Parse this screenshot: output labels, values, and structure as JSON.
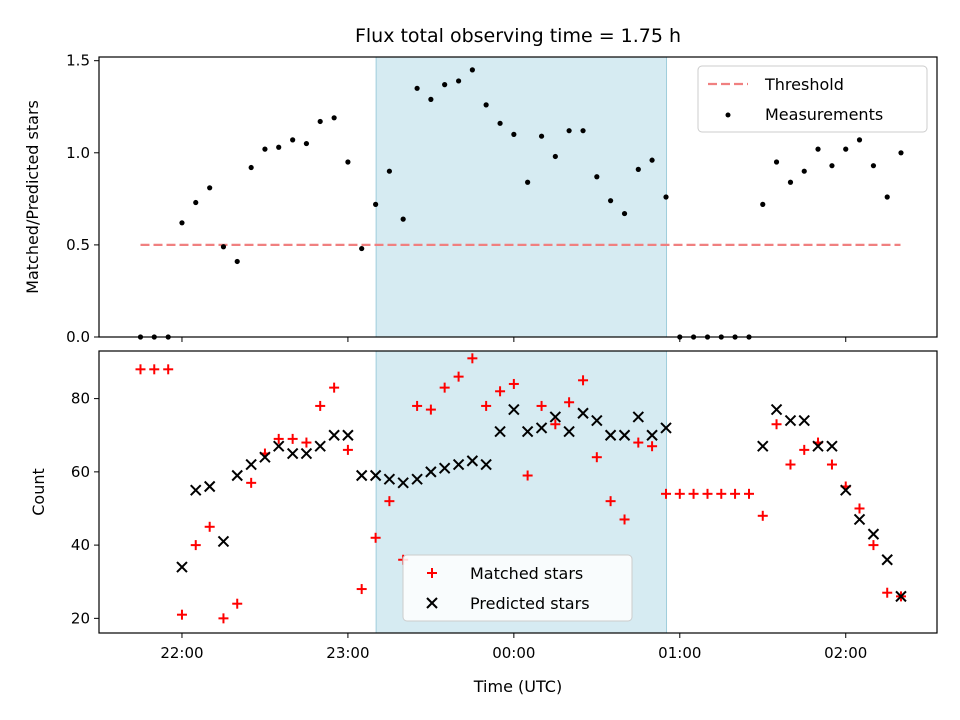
{
  "colors": {
    "highlight": "#add8e6",
    "threshold": "#f08080",
    "measurement": "#000000",
    "matched": "#ff0000",
    "predicted": "#000000"
  },
  "chart_data": [
    {
      "type": "scatter",
      "title": "Flux total observing time = 1.75 h",
      "xlabel": "",
      "ylabel": "Matched/Predicted stars",
      "ylim": [
        0,
        1.52
      ],
      "yticks": [
        "0.0",
        "0.5",
        "1.0",
        "1.5"
      ],
      "ytick_values": [
        0,
        0.5,
        1.0,
        1.5
      ],
      "shaded_region_hours": [
        23.17,
        24.92
      ],
      "legend_position": "upper right",
      "series": [
        {
          "name": "Threshold",
          "style": "dashed-line",
          "x": [
            21.75,
            26.33
          ],
          "y": [
            0.5,
            0.5
          ]
        },
        {
          "name": "Measurements",
          "style": "dot",
          "x": [
            21.75,
            21.833,
            21.917,
            22.0,
            22.083,
            22.167,
            22.25,
            22.333,
            22.417,
            22.5,
            22.583,
            22.667,
            22.75,
            22.833,
            22.917,
            23.0,
            23.083,
            23.167,
            23.25,
            23.333,
            23.417,
            23.5,
            23.583,
            23.667,
            23.75,
            23.833,
            23.917,
            24.0,
            24.083,
            24.167,
            24.25,
            24.333,
            24.417,
            24.5,
            24.583,
            24.667,
            24.75,
            24.833,
            24.917,
            25.0,
            25.083,
            25.167,
            25.25,
            25.333,
            25.417,
            25.5,
            25.583,
            25.667,
            25.75,
            25.833,
            25.917,
            26.0,
            26.083,
            26.167,
            26.25,
            26.333
          ],
          "y": [
            0.0,
            0.0,
            0.0,
            0.62,
            0.73,
            0.81,
            0.49,
            0.41,
            0.92,
            1.02,
            1.03,
            1.07,
            1.05,
            1.17,
            1.19,
            0.95,
            0.48,
            0.72,
            0.9,
            0.64,
            1.35,
            1.29,
            1.37,
            1.39,
            1.45,
            1.26,
            1.16,
            1.1,
            0.84,
            1.09,
            0.98,
            1.12,
            1.12,
            0.87,
            0.74,
            0.67,
            0.91,
            0.96,
            0.76,
            0.0,
            0.0,
            0.0,
            0.0,
            0.0,
            0.0,
            0.72,
            0.95,
            0.84,
            0.9,
            1.02,
            0.93,
            1.02,
            1.07,
            0.93,
            0.76,
            1.0
          ]
        }
      ]
    },
    {
      "type": "scatter",
      "title": "",
      "xlabel": "Time (UTC)",
      "ylabel": "Count",
      "ylim": [
        16,
        93
      ],
      "yticks": [
        "20",
        "40",
        "60",
        "80"
      ],
      "ytick_values": [
        20,
        40,
        60,
        80
      ],
      "xlim_hours": [
        21.5,
        26.55
      ],
      "xtick_values": [
        22,
        23,
        24,
        25,
        26
      ],
      "xticks": [
        "22:00",
        "23:00",
        "00:00",
        "01:00",
        "02:00"
      ],
      "shaded_region_hours": [
        23.17,
        24.92
      ],
      "legend_position": "lower center",
      "series": [
        {
          "name": "Matched stars",
          "style": "plus",
          "x": [
            21.75,
            21.833,
            21.917,
            22.0,
            22.083,
            22.167,
            22.25,
            22.333,
            22.417,
            22.5,
            22.583,
            22.667,
            22.75,
            22.833,
            22.917,
            23.0,
            23.083,
            23.167,
            23.25,
            23.333,
            23.417,
            23.5,
            23.583,
            23.667,
            23.75,
            23.833,
            23.917,
            24.0,
            24.083,
            24.167,
            24.25,
            24.333,
            24.417,
            24.5,
            24.583,
            24.667,
            24.75,
            24.833,
            24.917,
            25.0,
            25.083,
            25.167,
            25.25,
            25.333,
            25.417,
            25.5,
            25.583,
            25.667,
            25.75,
            25.833,
            25.917,
            26.0,
            26.083,
            26.167,
            26.25,
            26.333
          ],
          "y": [
            88,
            88,
            88,
            21,
            40,
            45,
            20,
            24,
            57,
            65,
            69,
            69,
            68,
            78,
            83,
            66,
            28,
            42,
            52,
            36,
            78,
            77,
            83,
            86,
            91,
            78,
            82,
            84,
            59,
            78,
            73,
            79,
            85,
            64,
            52,
            47,
            68,
            67,
            54,
            54,
            54,
            54,
            54,
            54,
            54,
            48,
            73,
            62,
            66,
            68,
            62,
            56,
            50,
            40,
            27,
            26
          ]
        },
        {
          "name": "Predicted stars",
          "style": "x",
          "x": [
            22.0,
            22.083,
            22.167,
            22.25,
            22.333,
            22.417,
            22.5,
            22.583,
            22.667,
            22.75,
            22.833,
            22.917,
            23.0,
            23.083,
            23.167,
            23.25,
            23.333,
            23.417,
            23.5,
            23.583,
            23.667,
            23.75,
            23.833,
            23.917,
            24.0,
            24.083,
            24.167,
            24.25,
            24.333,
            24.417,
            24.5,
            24.583,
            24.667,
            24.75,
            24.833,
            24.917,
            25.5,
            25.583,
            25.667,
            25.75,
            25.833,
            25.917,
            26.0,
            26.083,
            26.167,
            26.25,
            26.333
          ],
          "y": [
            34,
            55,
            56,
            41,
            59,
            62,
            64,
            67,
            65,
            65,
            67,
            70,
            70,
            59,
            59,
            58,
            57,
            58,
            60,
            61,
            62,
            63,
            62,
            71,
            77,
            71,
            72,
            75,
            71,
            76,
            74,
            70,
            70,
            75,
            70,
            72,
            67,
            77,
            74,
            74,
            67,
            67,
            55,
            47,
            43,
            36,
            26
          ]
        }
      ]
    }
  ]
}
